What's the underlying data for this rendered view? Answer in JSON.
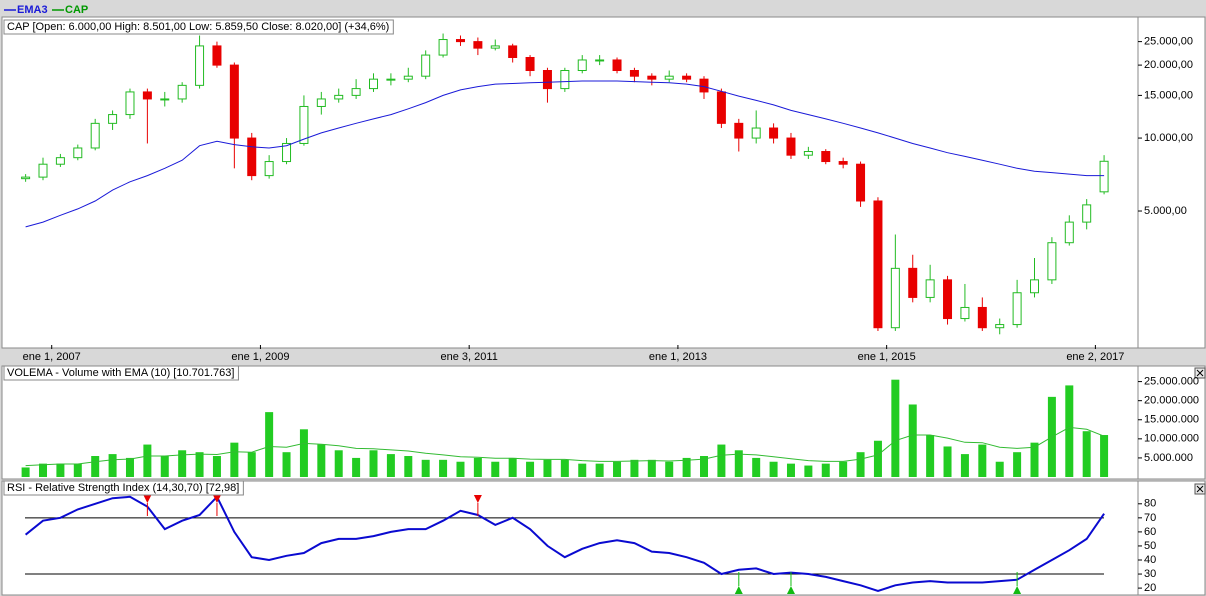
{
  "chart_data": [
    {
      "type": "candlestick",
      "label": "CAP [Open: 6.000,00  High: 8.501,00  Low: 5.859,50  Close: 8.020,00] (+34,6%)",
      "x": [
        -3,
        -1,
        1,
        3,
        5,
        7,
        9,
        11,
        13,
        15,
        17,
        19,
        21,
        23,
        25,
        27,
        29,
        31,
        33,
        35,
        37,
        39,
        41,
        43,
        45,
        47,
        49,
        51,
        53,
        55,
        57,
        59,
        61,
        63,
        65,
        67,
        69,
        71,
        73,
        75,
        77,
        79,
        81,
        83,
        85,
        87,
        89,
        91,
        93,
        95,
        97,
        99,
        101,
        103,
        105,
        107,
        109,
        111,
        113,
        115,
        117,
        119,
        121
      ],
      "xlim": [
        -5.6,
        124.9
      ],
      "xticks": [
        {
          "value": 0,
          "label": "ene 1, 2007"
        },
        {
          "value": 24,
          "label": "ene 1, 2009"
        },
        {
          "value": 48,
          "label": "ene 3, 2011"
        },
        {
          "value": 72,
          "label": "ene 1, 2013"
        },
        {
          "value": 96,
          "label": "ene 1, 2015"
        },
        {
          "value": 120,
          "label": "ene 2, 2017"
        }
      ],
      "ylim": [
        1400,
        30700
      ],
      "log_scale": true,
      "yticks": [
        {
          "value": 5000,
          "label": "5.000,00"
        },
        {
          "value": 10000,
          "label": "10.000,00"
        },
        {
          "value": 15000,
          "label": "15.000,00"
        },
        {
          "value": 20000,
          "label": "20.000,00"
        },
        {
          "value": 25000,
          "label": "25.000,00"
        }
      ],
      "series": [
        {
          "name": "EMA3",
          "color": "#1a1ad8",
          "values": [
            4300,
            4500,
            4800,
            5100,
            5500,
            6100,
            6600,
            7000,
            7500,
            8100,
            9300,
            9700,
            9400,
            9200,
            9100,
            9300,
            9900,
            10500,
            11000,
            11500,
            12000,
            12500,
            13200,
            14000,
            15000,
            15800,
            16300,
            16700,
            16800,
            16900,
            17000,
            17100,
            17200,
            17200,
            17200,
            17100,
            17000,
            16900,
            16700,
            16300,
            15600,
            14900,
            14300,
            13700,
            13000,
            12500,
            12000,
            11500,
            11000,
            10500,
            10000,
            9500,
            9100,
            8700,
            8400,
            8100,
            7800,
            7500,
            7300,
            7200,
            7100,
            7000,
            7000
          ]
        }
      ],
      "candles": {
        "name": "CAP",
        "color": "#009900",
        "up_color": "#22bb22",
        "down_color": "#e80000",
        "open": [
          6800,
          6900,
          7800,
          8300,
          9100,
          11500,
          12500,
          15500,
          14500,
          14500,
          16500,
          24000,
          20000,
          10000,
          7000,
          8000,
          9500,
          13500,
          14500,
          15000,
          16000,
          17500,
          17500,
          18000,
          22000,
          25500,
          25000,
          23500,
          24000,
          21500,
          19000,
          16000,
          19000,
          21000,
          21000,
          19000,
          18000,
          17500,
          18000,
          17500,
          15500,
          11500,
          10000,
          11000,
          10000,
          8500,
          8800,
          8000,
          7800,
          5500,
          1650,
          2900,
          2200,
          2600,
          1800,
          2000,
          1650,
          1700,
          2300,
          2600,
          3700,
          4500,
          6000
        ],
        "high": [
          7100,
          8300,
          8600,
          9400,
          12000,
          13000,
          16000,
          16000,
          15500,
          17000,
          26500,
          25000,
          20500,
          10500,
          8500,
          10000,
          15000,
          15500,
          16000,
          17500,
          18500,
          18500,
          19500,
          23000,
          27000,
          26500,
          26000,
          25500,
          24500,
          22000,
          19500,
          19500,
          22000,
          22000,
          21500,
          19500,
          18500,
          19000,
          18500,
          18000,
          16000,
          12000,
          13000,
          11500,
          10500,
          9200,
          9000,
          8300,
          8000,
          5700,
          4000,
          3300,
          3000,
          2700,
          2500,
          2200,
          1800,
          2600,
          3200,
          3900,
          4800,
          5600,
          8501
        ],
        "low": [
          6600,
          6700,
          7600,
          8100,
          8900,
          10800,
          12000,
          9500,
          13500,
          14000,
          16000,
          19500,
          7500,
          6700,
          6800,
          7800,
          9300,
          12500,
          14000,
          14500,
          15500,
          16500,
          17000,
          17500,
          21500,
          24000,
          22000,
          23000,
          20500,
          18000,
          14000,
          15500,
          18500,
          20000,
          18500,
          17000,
          16500,
          17000,
          17000,
          14500,
          11000,
          8800,
          9500,
          9500,
          8200,
          8200,
          7800,
          7500,
          5200,
          1600,
          1600,
          2100,
          2100,
          1700,
          1750,
          1600,
          1550,
          1650,
          2200,
          2500,
          3600,
          4200,
          5859.5
        ],
        "close": [
          6900,
          7800,
          8300,
          9100,
          11500,
          12500,
          15500,
          14500,
          14500,
          16500,
          24000,
          20000,
          10000,
          7000,
          8000,
          9500,
          13500,
          14500,
          15000,
          16000,
          17500,
          17500,
          18000,
          22000,
          25500,
          25000,
          23500,
          24000,
          21500,
          19000,
          16000,
          19000,
          21000,
          21000,
          19000,
          18000,
          17500,
          18000,
          17500,
          15500,
          11500,
          10000,
          11000,
          10000,
          8500,
          8800,
          8000,
          7800,
          5500,
          1650,
          2900,
          2200,
          2600,
          1800,
          2000,
          1650,
          1700,
          2300,
          2600,
          3700,
          4500,
          5300,
          8020
        ]
      }
    },
    {
      "type": "bar",
      "label": "VOLEMA - Volume with EMA (10) [10.701.763]",
      "x": [
        -3,
        -1,
        1,
        3,
        5,
        7,
        9,
        11,
        13,
        15,
        17,
        19,
        21,
        23,
        25,
        27,
        29,
        31,
        33,
        35,
        37,
        39,
        41,
        43,
        45,
        47,
        49,
        51,
        53,
        55,
        57,
        59,
        61,
        63,
        65,
        67,
        69,
        71,
        73,
        75,
        77,
        79,
        81,
        83,
        85,
        87,
        89,
        91,
        93,
        95,
        97,
        99,
        101,
        103,
        105,
        107,
        109,
        111,
        113,
        115,
        117,
        119,
        121
      ],
      "xlim": [
        -5.6,
        124.9
      ],
      "ylim": [
        0,
        28300000
      ],
      "yticks": [
        {
          "value": 5000000,
          "label": "5.000.000"
        },
        {
          "value": 10000000,
          "label": "10.000.000"
        },
        {
          "value": 15000000,
          "label": "15.000.000"
        },
        {
          "value": 20000000,
          "label": "20.000.000"
        },
        {
          "value": 25000000,
          "label": "25.000.000"
        }
      ],
      "color": "#22cc22",
      "values": [
        2500000,
        3500000,
        3500000,
        3500000,
        5500000,
        6000000,
        5000000,
        8500000,
        5500000,
        7000000,
        6500000,
        5500000,
        9000000,
        6500000,
        17000000,
        6500000,
        12500000,
        8500000,
        7000000,
        5000000,
        7000000,
        6000000,
        5500000,
        4500000,
        4500000,
        4000000,
        5000000,
        4000000,
        5000000,
        4000000,
        4500000,
        4500000,
        3500000,
        3500000,
        4000000,
        4500000,
        4500000,
        4000000,
        5000000,
        5500000,
        8500000,
        7000000,
        5000000,
        4000000,
        3500000,
        3000000,
        3500000,
        4000000,
        6500000,
        9500000,
        25500000,
        19000000,
        11000000,
        8000000,
        6000000,
        8500000,
        4000000,
        6500000,
        9000000,
        21000000,
        24000000,
        12000000,
        11000000
      ],
      "series": [
        {
          "color": "#33bb33",
          "values": [
            3000000,
            3200000,
            3400000,
            3400000,
            4000000,
            4500000,
            4700000,
            5500000,
            5500000,
            5800000,
            6000000,
            5900000,
            6600000,
            6500000,
            8000000,
            7800000,
            8800000,
            8600000,
            8200000,
            7500000,
            7400000,
            7100000,
            6800000,
            6200000,
            5800000,
            5300000,
            5200000,
            4900000,
            4900000,
            4700000,
            4600000,
            4600000,
            4300000,
            4100000,
            4100000,
            4200000,
            4300000,
            4200000,
            4400000,
            4700000,
            5700000,
            6000000,
            5800000,
            5300000,
            4800000,
            4300000,
            4100000,
            4100000,
            4700000,
            5800000,
            9500000,
            11000000,
            11000000,
            10200000,
            9100000,
            9000000,
            7800000,
            7500000,
            7800000,
            10500000,
            13000000,
            12500000,
            10701763
          ]
        }
      ]
    },
    {
      "type": "line",
      "label": "RSI - Relative Strength Index (14,30,70) [72,98]",
      "x": [
        -3,
        -1,
        1,
        3,
        5,
        7,
        9,
        11,
        13,
        15,
        17,
        19,
        21,
        23,
        25,
        27,
        29,
        31,
        33,
        35,
        37,
        39,
        41,
        43,
        45,
        47,
        49,
        51,
        53,
        55,
        57,
        59,
        61,
        63,
        65,
        67,
        69,
        71,
        73,
        75,
        77,
        79,
        81,
        83,
        85,
        87,
        89,
        91,
        93,
        95,
        97,
        99,
        101,
        103,
        105,
        107,
        109,
        111,
        113,
        115,
        117,
        119,
        121
      ],
      "xlim": [
        -5.6,
        124.9
      ],
      "ylim": [
        15.8,
        94.8
      ],
      "yticks": [
        20,
        30,
        40,
        50,
        60,
        70,
        80
      ],
      "levels": [
        30,
        70
      ],
      "color": "#0a0ad0",
      "values": [
        58,
        68,
        70,
        76,
        80,
        84,
        85,
        78,
        62,
        68,
        72,
        85,
        60,
        42,
        40,
        43,
        45,
        52,
        55,
        55,
        57,
        60,
        62,
        62,
        68,
        75,
        72,
        65,
        70,
        62,
        50,
        42,
        48,
        52,
        54,
        52,
        46,
        45,
        42,
        38,
        30,
        33,
        34,
        30,
        31,
        30,
        28,
        25,
        22,
        18,
        22,
        24,
        25,
        24,
        24,
        24,
        25,
        26,
        33,
        40,
        47,
        55,
        72.98
      ],
      "sell_signals": [
        11,
        19,
        49
      ],
      "sell_color": "#e80000",
      "buy_signals": [
        79,
        85,
        111
      ],
      "buy_color": "#11bb11"
    }
  ]
}
